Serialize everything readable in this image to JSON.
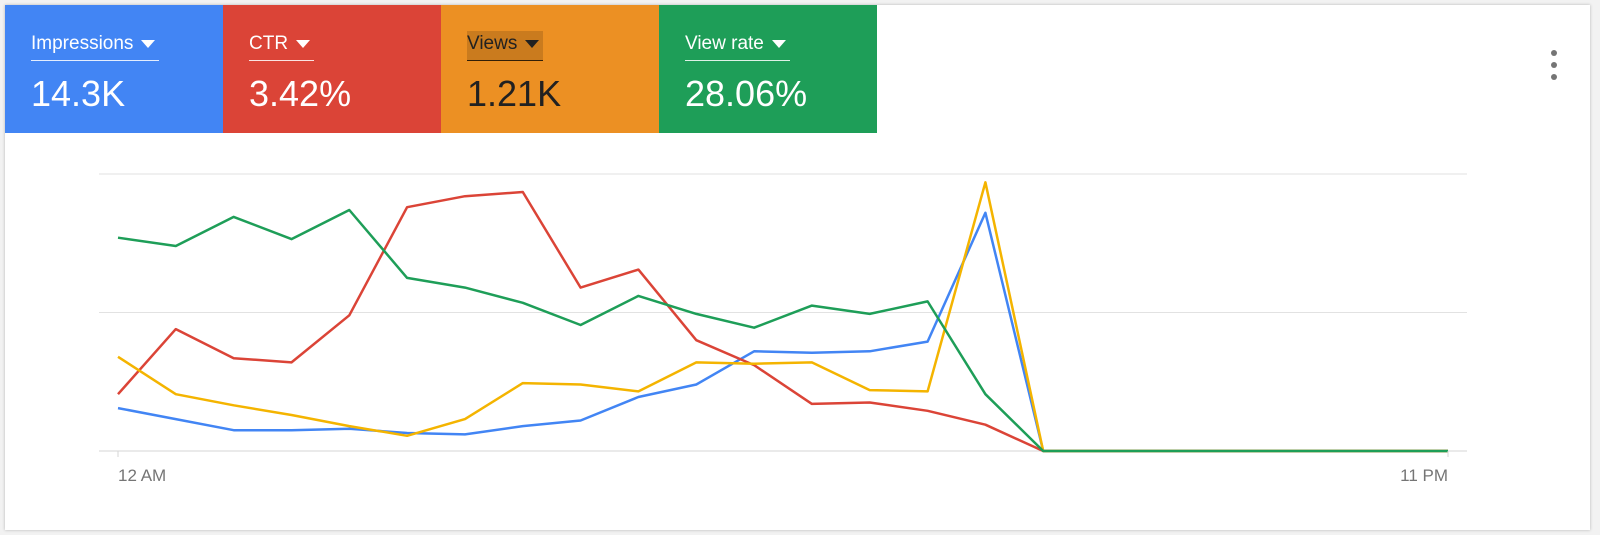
{
  "metrics": [
    {
      "label": "Impressions",
      "value": "14.3K",
      "color": "#4285f4"
    },
    {
      "label": "CTR",
      "value": "3.42%",
      "color": "#db4437"
    },
    {
      "label": "Views",
      "value": "1.21K",
      "color": "#ec9023",
      "selected": true
    },
    {
      "label": "View rate",
      "value": "28.06%",
      "color": "#1e9e58"
    }
  ],
  "menu_icon": "more-vert-icon",
  "chart_data": {
    "type": "line",
    "title": "",
    "xlabel": "",
    "ylabel": "",
    "x": [
      0,
      1,
      2,
      3,
      4,
      5,
      6,
      7,
      8,
      9,
      10,
      11,
      12,
      13,
      14,
      15,
      16,
      17,
      18,
      19,
      20,
      21,
      22,
      23
    ],
    "x_tick_labels": [
      {
        "x": 0,
        "label": "12 AM"
      },
      {
        "x": 23,
        "label": "11 PM"
      }
    ],
    "ylim": [
      0,
      100
    ],
    "grid": true,
    "gridlines": [
      0,
      50,
      100
    ],
    "series": [
      {
        "name": "Impressions",
        "color": "#4285f4",
        "values": [
          15.5,
          11.5,
          7.5,
          7.5,
          8,
          6.5,
          6,
          9,
          11,
          19.5,
          24,
          36,
          35.5,
          36,
          39.5,
          86,
          0,
          0,
          0,
          0,
          0,
          0,
          0,
          0
        ]
      },
      {
        "name": "CTR",
        "color": "#db4437",
        "values": [
          20.5,
          44,
          33.5,
          32,
          49,
          88,
          92,
          93.5,
          59,
          65.5,
          40,
          31,
          17,
          17.5,
          14.5,
          9.5,
          0,
          0,
          0,
          0,
          0,
          0,
          0,
          0
        ]
      },
      {
        "name": "Views",
        "color": "#f4b400",
        "values": [
          34,
          20.5,
          16.5,
          13,
          9,
          5.5,
          11.5,
          24.5,
          24,
          21.5,
          32,
          31.5,
          32,
          22,
          21.5,
          97,
          0,
          0,
          0,
          0,
          0,
          0,
          0,
          0
        ]
      },
      {
        "name": "View rate",
        "color": "#1e9e58",
        "values": [
          77,
          74,
          84.5,
          76.5,
          87,
          62.5,
          59,
          53.5,
          45.5,
          56,
          49.5,
          44.5,
          52.5,
          49.5,
          54,
          20.5,
          0,
          0,
          0,
          0,
          0,
          0,
          0,
          0
        ]
      }
    ]
  }
}
